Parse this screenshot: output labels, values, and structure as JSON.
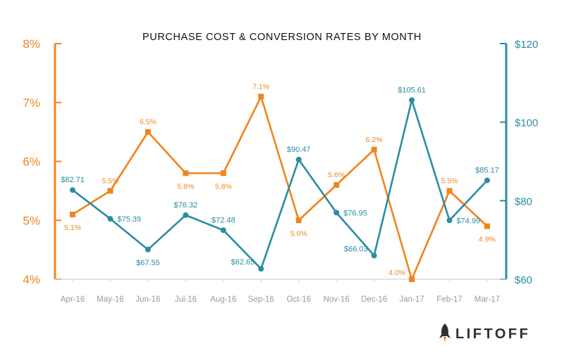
{
  "chart_data": {
    "type": "line",
    "title": "PURCHASE COST & CONVERSION RATES BY MONTH",
    "categories": [
      "Apr-16",
      "May-16",
      "Jun-16",
      "Jul-16",
      "Aug-16",
      "Sep-16",
      "Oct-16",
      "Nov-16",
      "Dec-16",
      "Jan-17",
      "Feb-17",
      "Mar-17"
    ],
    "left_axis": {
      "min": 4,
      "max": 8,
      "ticks": [
        "4%",
        "5%",
        "6%",
        "7%",
        "8%"
      ],
      "tick_values": [
        4,
        5,
        6,
        7,
        8
      ],
      "color": "#F0841D"
    },
    "right_axis": {
      "min": 60,
      "max": 120,
      "ticks": [
        "$60",
        "$80",
        "$100",
        "$120"
      ],
      "tick_values": [
        60,
        80,
        100,
        120
      ],
      "color": "#2A8DA3"
    },
    "series": [
      {
        "axis": "left",
        "color": "#F0841D",
        "marker": "square",
        "values": [
          5.1,
          5.5,
          6.5,
          5.8,
          5.8,
          7.1,
          5.0,
          5.6,
          6.2,
          4.0,
          5.5,
          4.9
        ],
        "labels": [
          "5.1%",
          "5.5%",
          "6.5%",
          "5.8%",
          "5.8%",
          "7.1%",
          "5.0%",
          "5.6%",
          "6.2%",
          "4.0%",
          "5.5%",
          "4.9%"
        ],
        "label_pos": [
          "below",
          "above",
          "above",
          "below",
          "below",
          "above",
          "below",
          "above",
          "above",
          "left",
          "above",
          "below"
        ]
      },
      {
        "axis": "right",
        "color": "#2A8DA3",
        "marker": "circle",
        "values": [
          82.71,
          75.39,
          67.55,
          76.32,
          72.48,
          62.65,
          90.47,
          76.95,
          66.03,
          105.61,
          74.99,
          85.17
        ],
        "labels": [
          "$82.71",
          "$75.39",
          "$67.55",
          "$76.32",
          "$72.48",
          "$62.65",
          "$90.47",
          "$76.95",
          "$66.03",
          "$105.61",
          "$74.99",
          "$85.17"
        ],
        "label_pos": [
          "above",
          "right",
          "below",
          "above",
          "above",
          "left",
          "above",
          "right",
          "left",
          "above",
          "right",
          "above"
        ]
      }
    ]
  },
  "logo": {
    "name": "rocket-icon",
    "text": "LIFTOFF"
  }
}
